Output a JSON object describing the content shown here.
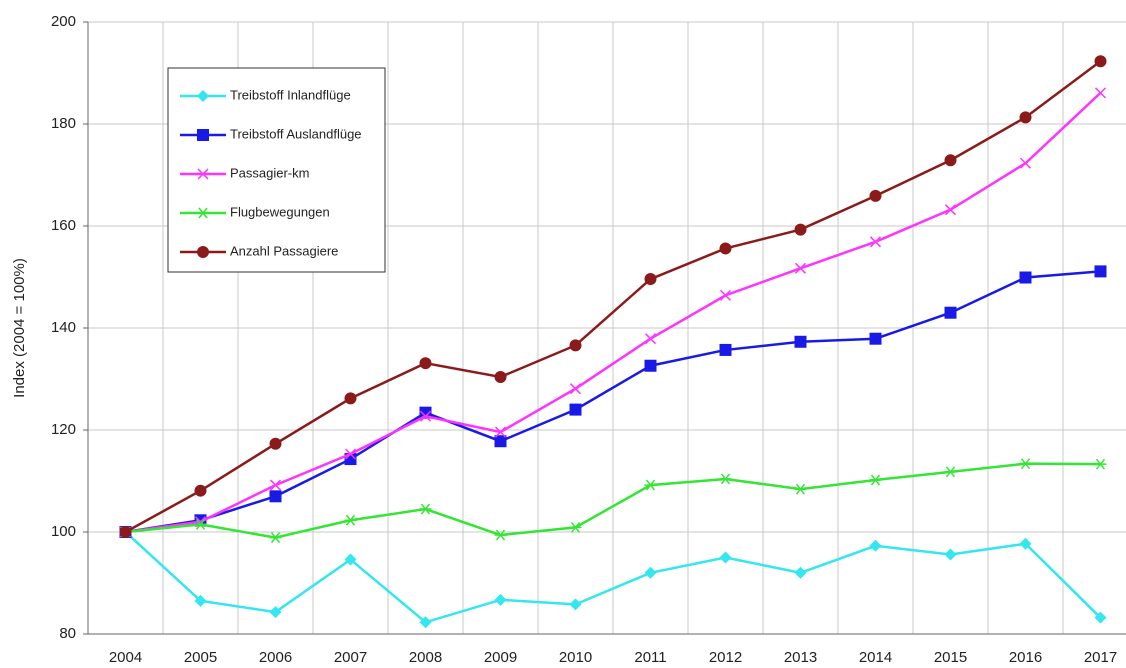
{
  "chart_data": {
    "type": "line",
    "y_label": "Index (2004 = 100%)",
    "categories": [
      "2004",
      "2005",
      "2006",
      "2007",
      "2008",
      "2009",
      "2010",
      "2011",
      "2012",
      "2013",
      "2014",
      "2015",
      "2016",
      "2017"
    ],
    "series": [
      {
        "name": "Treibstoff Inlandflüge",
        "color": "#33e6f0",
        "marker": "diamond",
        "values": [
          100,
          86.5,
          84.3,
          94.6,
          82.3,
          86.7,
          85.8,
          92,
          95,
          92,
          97.3,
          95.6,
          97.7,
          83.2
        ]
      },
      {
        "name": "Treibstoff Auslandflüge",
        "color": "#1a1ae6",
        "marker": "square",
        "values": [
          100,
          102.3,
          107,
          114.3,
          123.4,
          117.8,
          124,
          132.6,
          135.7,
          137.3,
          137.9,
          143,
          149.9,
          151.1
        ]
      },
      {
        "name": "Passagier-km",
        "color": "#ff33ff",
        "marker": "x",
        "values": [
          100,
          102,
          109.2,
          115.3,
          122.7,
          119.6,
          128.1,
          137.9,
          146.4,
          151.7,
          156.9,
          163.2,
          172.3,
          186.1
        ]
      },
      {
        "name": "Flugbewegungen",
        "color": "#33e633",
        "marker": "star",
        "values": [
          100,
          101.5,
          98.9,
          102.3,
          104.5,
          99.4,
          100.9,
          109.2,
          110.4,
          108.4,
          110.2,
          111.8,
          113.4,
          113.3
        ]
      },
      {
        "name": "Anzahl Passagiere",
        "color": "#8b1a1a",
        "marker": "circle",
        "values": [
          100,
          108.1,
          117.3,
          126.2,
          133.1,
          130.4,
          136.6,
          149.6,
          155.6,
          159.3,
          165.9,
          172.9,
          181.3,
          192.3
        ]
      }
    ],
    "ylim": [
      80,
      200
    ],
    "yticks": [
      80,
      100,
      120,
      140,
      160,
      180,
      200
    ],
    "grid": true,
    "legend": "upper left"
  }
}
